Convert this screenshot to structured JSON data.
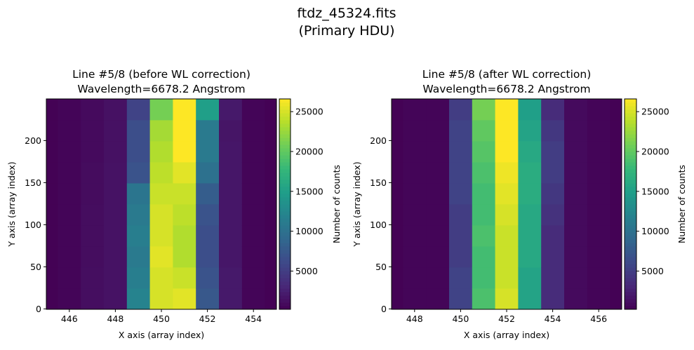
{
  "figure": {
    "title_line1": "ftdz_45324.fits",
    "title_line2": "(Primary HDU)"
  },
  "chart_data": [
    {
      "type": "heatmap",
      "title_line1": "Line #5/8 (before WL correction)",
      "title_line2": "Wavelength=6678.2 Angstrom",
      "xlabel": "X axis (array index)",
      "ylabel": "Y axis (array index)",
      "colorbar_label": "Number of counts",
      "colormap": "viridis",
      "vmin": 200,
      "vmax": 26600,
      "xlim": [
        445,
        455
      ],
      "ylim": [
        -0.5,
        249.5
      ],
      "x_ticks": [
        "446",
        "448",
        "450",
        "452",
        "454"
      ],
      "y_ticks": [
        "0",
        "50",
        "100",
        "150",
        "200"
      ],
      "colorbar_ticks": [
        "5000",
        "10000",
        "15000",
        "20000",
        "25000"
      ],
      "columns": [
        445,
        446,
        447,
        448,
        449,
        450,
        451,
        452,
        453,
        454,
        455
      ],
      "row_bands": [
        [
          0,
          25
        ],
        [
          25,
          50
        ],
        [
          50,
          75
        ],
        [
          75,
          100
        ],
        [
          100,
          125
        ],
        [
          125,
          150
        ],
        [
          150,
          175
        ],
        [
          175,
          200
        ],
        [
          200,
          225
        ],
        [
          225,
          250
        ]
      ],
      "values": [
        [
          300,
          300,
          300,
          300,
          300,
          300,
          300,
          300,
          300,
          300
        ],
        [
          500,
          500,
          500,
          500,
          500,
          500,
          500,
          500,
          500,
          500
        ],
        [
          1200,
          1200,
          1100,
          1100,
          1100,
          1000,
          1000,
          900,
          900,
          900
        ],
        [
          1500,
          1500,
          1500,
          1500,
          1500,
          1500,
          1500,
          1400,
          1400,
          1400
        ],
        [
          12000,
          11500,
          11000,
          11500,
          11000,
          10500,
          7000,
          6500,
          6500,
          5500
        ],
        [
          25000,
          25000,
          25500,
          25000,
          25000,
          24500,
          24000,
          23500,
          23000,
          21000
        ],
        [
          25500,
          24500,
          23500,
          23500,
          24000,
          24500,
          25500,
          26600,
          26600,
          26600
        ],
        [
          7500,
          7000,
          6500,
          6500,
          7000,
          8000,
          10000,
          11000,
          11000,
          15000
        ],
        [
          2000,
          2000,
          1800,
          1800,
          1800,
          1800,
          1800,
          1800,
          1700,
          2000
        ],
        [
          500,
          500,
          500,
          500,
          500,
          500,
          500,
          500,
          500,
          500
        ],
        [
          300,
          300,
          300,
          300,
          300,
          300,
          300,
          300,
          300,
          300
        ]
      ]
    },
    {
      "type": "heatmap",
      "title_line1": "Line #5/8 (after WL correction)",
      "title_line2": "Wavelength=6678.2 Angstrom",
      "xlabel": "X axis (array index)",
      "ylabel": "Y axis (array index)",
      "colorbar_label": "Number of counts",
      "colormap": "viridis",
      "vmin": 200,
      "vmax": 26600,
      "xlim": [
        447,
        457
      ],
      "ylim": [
        -0.5,
        249.5
      ],
      "x_ticks": [
        "448",
        "450",
        "452",
        "454",
        "456"
      ],
      "y_ticks": [
        "0",
        "50",
        "100",
        "150",
        "200"
      ],
      "colorbar_ticks": [
        "5000",
        "10000",
        "15000",
        "20000",
        "25000"
      ],
      "columns": [
        447,
        448,
        449,
        450,
        451,
        452,
        453,
        454,
        455,
        456,
        457
      ],
      "row_bands": [
        [
          0,
          25
        ],
        [
          25,
          50
        ],
        [
          50,
          75
        ],
        [
          75,
          100
        ],
        [
          100,
          125
        ],
        [
          125,
          150
        ],
        [
          150,
          175
        ],
        [
          175,
          200
        ],
        [
          200,
          225
        ],
        [
          225,
          250
        ]
      ],
      "values": [
        [
          300,
          300,
          300,
          300,
          300,
          300,
          300,
          300,
          300,
          300
        ],
        [
          500,
          500,
          500,
          500,
          500,
          500,
          500,
          500,
          500,
          500
        ],
        [
          500,
          500,
          500,
          500,
          500,
          500,
          500,
          500,
          500,
          500
        ],
        [
          5500,
          5500,
          5000,
          5000,
          5000,
          5500,
          5500,
          5500,
          5500,
          5000
        ],
        [
          19000,
          18500,
          18500,
          19000,
          18500,
          18500,
          19000,
          19500,
          20000,
          21000
        ],
        [
          25000,
          24500,
          24500,
          24500,
          25000,
          25500,
          26000,
          26600,
          26600,
          26600
        ],
        [
          15500,
          15500,
          16000,
          16000,
          16000,
          16500,
          16500,
          16000,
          15500,
          15000
        ],
        [
          3500,
          3500,
          3500,
          3500,
          4000,
          4500,
          5000,
          5000,
          4500,
          3500
        ],
        [
          900,
          900,
          900,
          900,
          900,
          900,
          900,
          900,
          900,
          900
        ],
        [
          500,
          500,
          500,
          500,
          500,
          500,
          500,
          500,
          500,
          500
        ],
        [
          300,
          300,
          300,
          300,
          300,
          300,
          300,
          300,
          300,
          300
        ]
      ]
    }
  ]
}
